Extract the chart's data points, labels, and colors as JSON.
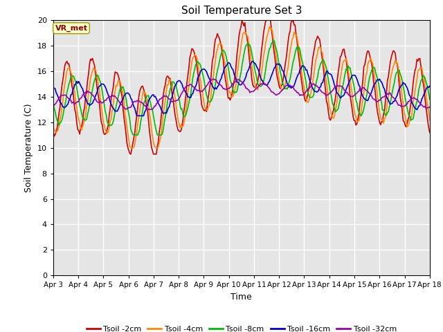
{
  "title": "Soil Temperature Set 3",
  "xlabel": "Time",
  "ylabel": "Soil Temperature (C)",
  "ylim": [
    0,
    20
  ],
  "xlim": [
    0,
    360
  ],
  "background_color": "#e5e5e5",
  "annotation_text": "VR_met",
  "annotation_bg": "#ffffcc",
  "annotation_border": "#999900",
  "series_colors": [
    "#cc0000",
    "#ff8800",
    "#00bb00",
    "#0000cc",
    "#9900aa"
  ],
  "series_labels": [
    "Tsoil -2cm",
    "Tsoil -4cm",
    "Tsoil -8cm",
    "Tsoil -16cm",
    "Tsoil -32cm"
  ],
  "xtick_labels": [
    "Apr 3",
    "Apr 4",
    "Apr 5",
    "Apr 6",
    "Apr 7",
    "Apr 8",
    "Apr 9",
    "Apr 10",
    "Apr 11",
    "Apr 12",
    "Apr 13",
    "Apr 14",
    "Apr 15",
    "Apr 16",
    "Apr 17",
    "Apr 18"
  ],
  "xtick_positions": [
    0,
    24,
    48,
    72,
    96,
    120,
    144,
    168,
    192,
    216,
    240,
    264,
    288,
    312,
    336,
    360
  ],
  "ytick_positions": [
    0,
    2,
    4,
    6,
    8,
    10,
    12,
    14,
    16,
    18,
    20
  ],
  "grid_color": "#ffffff",
  "linewidth": 1.2
}
